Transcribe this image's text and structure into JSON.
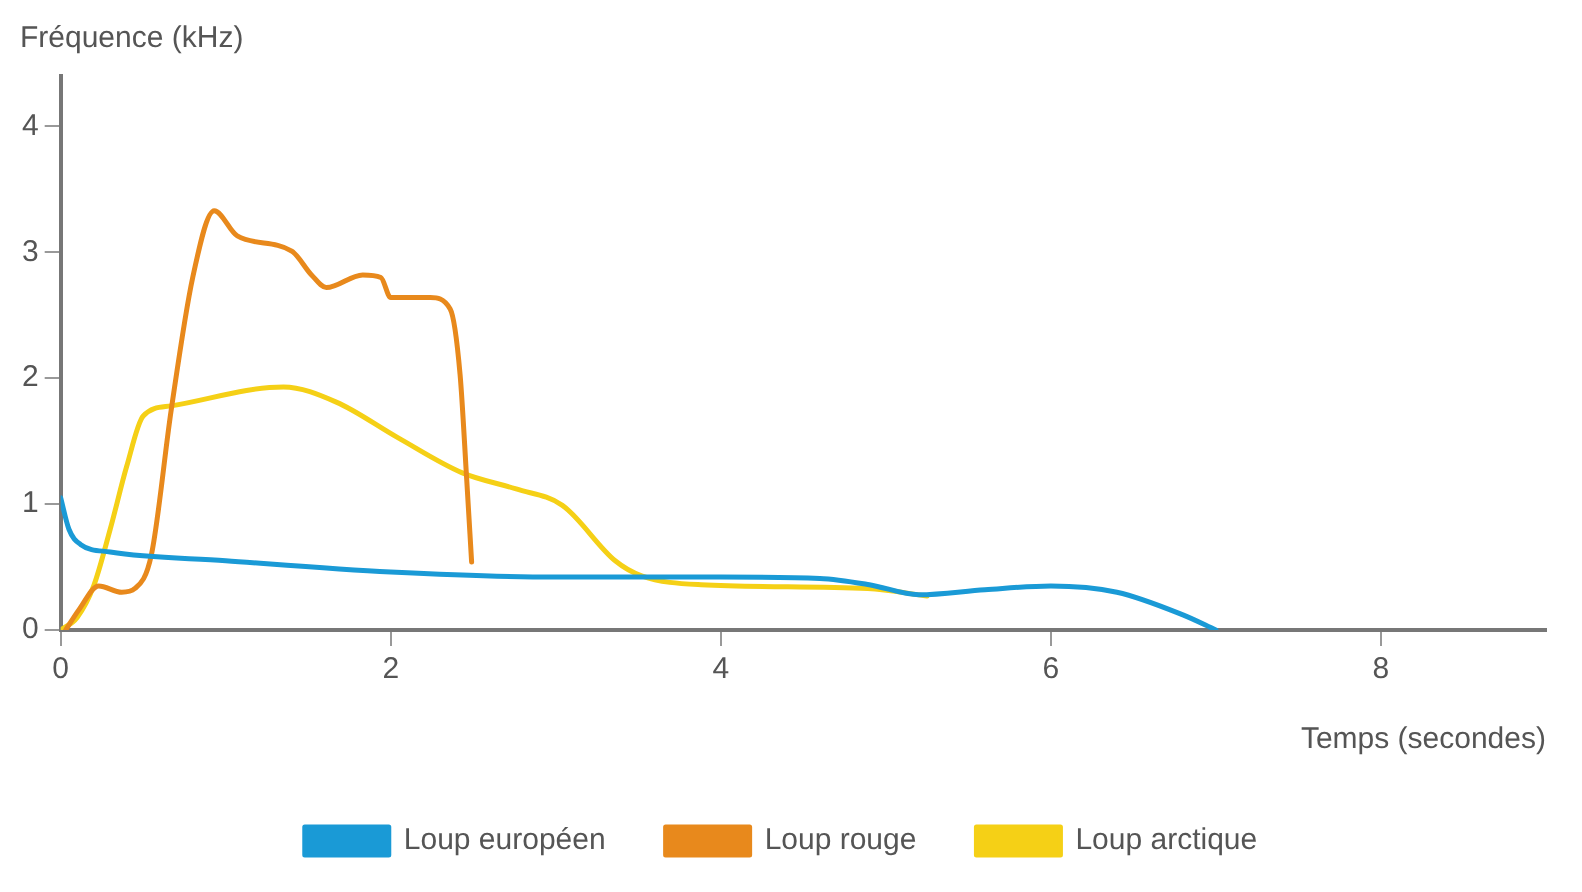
{
  "chart_data": {
    "type": "line",
    "xlabel": "Temps (secondes)",
    "ylabel": "Fréquence (kHz)",
    "xlim": [
      0,
      9
    ],
    "ylim": [
      0,
      4.4
    ],
    "xticks": [
      0,
      2,
      4,
      6,
      8
    ],
    "yticks": [
      0,
      1,
      2,
      3,
      4
    ],
    "grid": false,
    "legend": "bottom",
    "marker": "none",
    "line_style": "solid",
    "series": [
      {
        "name": "Loup européen",
        "color": "#1a9ad6",
        "x": [
          0,
          0.05,
          0.12,
          0.3,
          1,
          2,
          3,
          4,
          4.6,
          4.9,
          5.2,
          5.6,
          6,
          6.4,
          6.8,
          7
        ],
        "values": [
          1.05,
          0.8,
          0.68,
          0.62,
          0.55,
          0.46,
          0.42,
          0.42,
          0.41,
          0.36,
          0.28,
          0.32,
          0.35,
          0.3,
          0.12,
          0
        ]
      },
      {
        "name": "Loup rouge",
        "color": "#e8891c",
        "x": [
          0.03,
          0.11,
          0.23,
          0.37,
          0.45,
          0.55,
          0.67,
          0.8,
          0.93,
          1.07,
          1.4,
          1.52,
          1.61,
          1.83,
          1.94,
          2.0,
          2.24,
          2.36,
          2.42,
          2.46,
          2.49
        ],
        "values": [
          0,
          0.16,
          0.35,
          0.3,
          0.33,
          0.6,
          1.75,
          2.8,
          3.33,
          3.13,
          3.01,
          2.82,
          2.72,
          2.82,
          2.8,
          2.64,
          2.64,
          2.55,
          2.03,
          1.2,
          0.54
        ]
      },
      {
        "name": "Loup arctique",
        "color": "#f5d016",
        "x": [
          0,
          0.1,
          0.2,
          0.3,
          0.4,
          0.5,
          0.67,
          1.35,
          1.67,
          2.04,
          2.43,
          2.76,
          3.04,
          3.36,
          3.52,
          3.88,
          4.89,
          5.25
        ],
        "values": [
          0,
          0.1,
          0.35,
          0.8,
          1.3,
          1.7,
          1.78,
          1.93,
          1.81,
          1.53,
          1.25,
          1.12,
          0.99,
          0.55,
          0.43,
          0.36,
          0.33,
          0.27
        ]
      }
    ]
  }
}
